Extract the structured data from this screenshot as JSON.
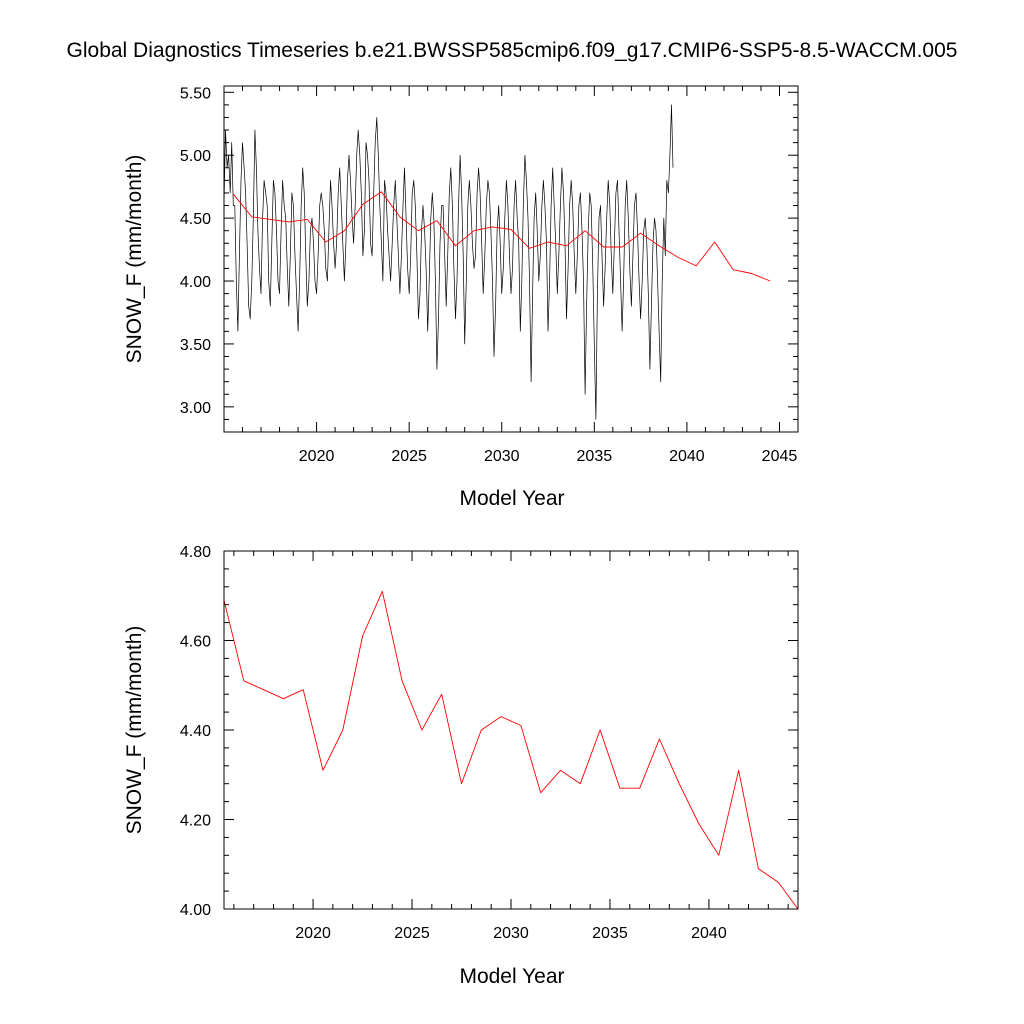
{
  "title": "Global Diagnostics Timeseries b.e21.BWSSP585cmip6.f09_g17.CMIP6-SSP5-8.5-WACCM.005",
  "colors": {
    "monthly": "#000000",
    "annual": "#ff0000",
    "frame": "#000000"
  },
  "chart_data": [
    {
      "type": "line",
      "xlabel": "Model Year",
      "ylabel": "SNOW_F (mm/month)",
      "xlim": [
        2015.0,
        2046.0
      ],
      "ylim": [
        2.8,
        5.55
      ],
      "xticks": [
        2020,
        2025,
        2030,
        2035,
        2040,
        2045
      ],
      "xtick_labels": [
        "2020",
        "2025",
        "2030",
        "2035",
        "2040",
        "2045"
      ],
      "yticks": [
        3.0,
        3.5,
        4.0,
        4.5,
        5.0,
        5.5
      ],
      "ytick_labels": [
        "3.00",
        "3.50",
        "4.00",
        "4.50",
        "5.00",
        "5.50"
      ],
      "series": [
        {
          "style": "monthly",
          "x_start": 2015.0,
          "x_step": 0.0833333,
          "values": [
            4.6,
            5.2,
            4.9,
            5.0,
            4.7,
            5.1,
            4.6,
            4.6,
            4.0,
            3.6,
            4.2,
            4.8,
            5.1,
            4.9,
            4.7,
            4.3,
            3.8,
            3.7,
            4.0,
            4.5,
            5.2,
            4.9,
            4.4,
            4.1,
            3.9,
            4.5,
            4.8,
            4.7,
            4.6,
            4.0,
            3.8,
            4.3,
            4.8,
            4.7,
            4.4,
            4.0,
            3.9,
            4.4,
            4.8,
            4.6,
            4.5,
            4.1,
            3.8,
            4.2,
            4.7,
            4.6,
            4.2,
            3.9,
            3.6,
            4.0,
            4.6,
            4.9,
            4.7,
            4.2,
            3.8,
            4.0,
            4.4,
            4.5,
            4.3,
            4.0,
            3.9,
            4.2,
            4.6,
            4.7,
            4.6,
            4.4,
            4.1,
            4.0,
            4.4,
            4.8,
            4.6,
            4.3,
            4.1,
            4.3,
            4.7,
            4.9,
            4.6,
            4.3,
            4.0,
            4.3,
            4.8,
            5.0,
            4.8,
            4.5,
            4.3,
            4.6,
            5.0,
            5.2,
            5.0,
            4.7,
            4.2,
            4.4,
            5.1,
            5.0,
            4.8,
            4.3,
            4.2,
            4.7,
            5.1,
            5.3,
            5.0,
            4.6,
            4.3,
            4.0,
            4.8,
            4.7,
            4.4,
            4.2,
            4.0,
            4.3,
            4.6,
            4.8,
            4.5,
            4.2,
            3.9,
            4.2,
            4.6,
            4.9,
            4.5,
            4.1,
            3.9,
            4.2,
            4.7,
            4.8,
            4.6,
            4.2,
            3.7,
            3.9,
            4.4,
            4.6,
            4.4,
            4.1,
            3.6,
            4.0,
            4.5,
            4.7,
            4.5,
            4.0,
            3.3,
            3.7,
            4.3,
            4.6,
            4.6,
            4.2,
            3.8,
            4.2,
            4.7,
            4.9,
            4.6,
            4.1,
            3.7,
            4.0,
            4.6,
            5.0,
            4.7,
            4.2,
            3.5,
            4.0,
            4.6,
            4.8,
            4.6,
            4.3,
            4.1,
            4.2,
            4.7,
            4.9,
            4.7,
            4.3,
            3.9,
            4.2,
            4.6,
            4.8,
            4.7,
            4.4,
            4.0,
            3.4,
            3.8,
            4.4,
            4.6,
            4.3,
            3.9,
            4.1,
            4.5,
            4.8,
            4.6,
            4.2,
            3.9,
            4.1,
            4.6,
            4.8,
            4.5,
            4.3,
            3.6,
            4.0,
            4.6,
            5.0,
            4.8,
            4.5,
            4.0,
            3.2,
            3.9,
            4.5,
            4.7,
            4.4,
            4.0,
            4.2,
            4.6,
            4.8,
            4.6,
            4.3,
            3.6,
            4.0,
            4.6,
            4.9,
            4.6,
            4.3,
            3.9,
            4.2,
            4.6,
            4.9,
            4.7,
            4.3,
            3.7,
            4.1,
            4.6,
            4.8,
            4.6,
            4.2,
            3.9,
            4.2,
            4.6,
            4.7,
            4.4,
            4.0,
            3.1,
            3.8,
            4.4,
            4.7,
            4.6,
            4.1,
            3.5,
            2.9,
            3.9,
            4.5,
            4.6,
            4.2,
            3.8,
            4.1,
            4.5,
            4.8,
            4.6,
            4.2,
            3.9,
            4.3,
            4.7,
            4.8,
            4.4,
            4.0,
            3.6,
            4.0,
            4.6,
            4.8,
            4.5,
            4.1,
            3.8,
            4.2,
            4.6,
            4.7,
            4.4,
            4.0,
            3.7,
            4.0,
            4.4,
            4.5,
            4.3,
            3.9,
            3.3,
            3.8,
            4.3,
            4.5,
            4.4,
            4.0,
            3.6,
            3.2,
            4.0,
            4.5,
            4.2,
            4.8,
            4.7,
            5.0,
            5.4,
            4.9
          ]
        },
        {
          "style": "annual",
          "x": [
            2015.5,
            2016.5,
            2017.5,
            2018.5,
            2019.5,
            2020.5,
            2021.5,
            2022.5,
            2023.5,
            2024.5,
            2025.5,
            2026.5,
            2027.5,
            2028.5,
            2029.5,
            2030.5,
            2031.5,
            2032.5,
            2033.5,
            2034.5,
            2035.5,
            2036.5,
            2037.5,
            2038.5,
            2039.5,
            2040.5,
            2041.5,
            2042.5,
            2043.5,
            2044.5
          ],
          "values": [
            4.69,
            4.51,
            4.49,
            4.47,
            4.49,
            4.31,
            4.4,
            4.61,
            4.71,
            4.51,
            4.4,
            4.48,
            4.28,
            4.4,
            4.43,
            4.41,
            4.26,
            4.31,
            4.28,
            4.4,
            4.27,
            4.27,
            4.38,
            4.28,
            4.19,
            4.12,
            4.31,
            4.09,
            4.06,
            4.0
          ]
        }
      ]
    },
    {
      "type": "line",
      "xlabel": "Model Year",
      "ylabel": "SNOW_F (mm/month)",
      "xlim": [
        2015.5,
        2044.5
      ],
      "ylim": [
        4.0,
        4.8
      ],
      "xticks": [
        2020,
        2025,
        2030,
        2035,
        2040
      ],
      "xtick_labels": [
        "2020",
        "2025",
        "2030",
        "2035",
        "2040"
      ],
      "yticks": [
        4.0,
        4.2,
        4.4,
        4.6,
        4.8
      ],
      "ytick_labels": [
        "4.00",
        "4.20",
        "4.40",
        "4.60",
        "4.80"
      ],
      "series": [
        {
          "style": "annual",
          "x": [
            2015.5,
            2016.5,
            2017.5,
            2018.5,
            2019.5,
            2020.5,
            2021.5,
            2022.5,
            2023.5,
            2024.5,
            2025.5,
            2026.5,
            2027.5,
            2028.5,
            2029.5,
            2030.5,
            2031.5,
            2032.5,
            2033.5,
            2034.5,
            2035.5,
            2036.5,
            2037.5,
            2038.5,
            2039.5,
            2040.5,
            2041.5,
            2042.5,
            2043.5,
            2044.5
          ],
          "values": [
            4.69,
            4.51,
            4.49,
            4.47,
            4.49,
            4.31,
            4.4,
            4.61,
            4.71,
            4.51,
            4.4,
            4.48,
            4.28,
            4.4,
            4.43,
            4.41,
            4.26,
            4.31,
            4.28,
            4.4,
            4.27,
            4.27,
            4.38,
            4.28,
            4.19,
            4.12,
            4.31,
            4.09,
            4.06,
            4.0
          ]
        }
      ]
    }
  ]
}
